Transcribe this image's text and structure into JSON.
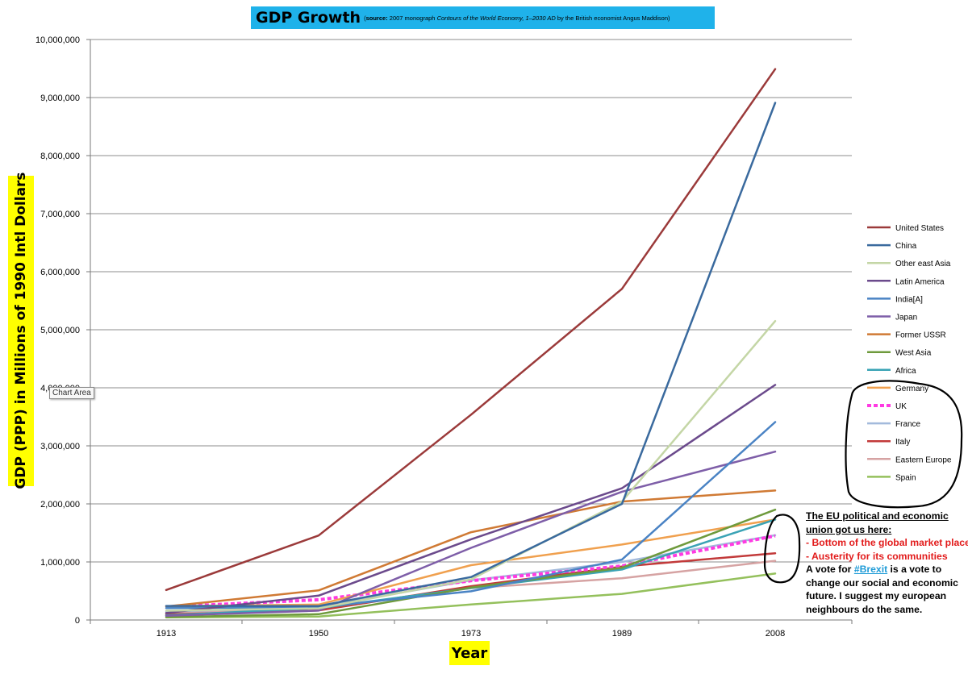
{
  "chart_data": {
    "type": "line",
    "title": "GDP Growth",
    "subtitle_label": "source:",
    "subtitle_pre": " 2007 monograph ",
    "subtitle_italic": "Contours of the World Economy, 1–2030 AD",
    "subtitle_post": " by the British economist Angus Maddison)",
    "ylabel": "GDP (PPP) in Millions of 1990 Intl Dollars",
    "xlabel": "Year",
    "categories": [
      "1913",
      "1950",
      "1973",
      "1989",
      "2008"
    ],
    "ylim": [
      0,
      10000000
    ],
    "yticks": [
      "0",
      "1,000,000",
      "2,000,000",
      "3,000,000",
      "4,000,000",
      "5,000,000",
      "6,000,000",
      "7,000,000",
      "8,000,000",
      "9,000,000",
      "10,000,000"
    ],
    "grid": true,
    "legend_position": "right",
    "series": [
      {
        "name": "United States",
        "color": "#9b3a3a",
        "values": [
          517000,
          1456000,
          3537000,
          5704000,
          9490000
        ]
      },
      {
        "name": "China",
        "color": "#3a6a9e",
        "values": [
          241000,
          240000,
          740000,
          2000000,
          8910000
        ]
      },
      {
        "name": "Other east Asia",
        "color": "#c4d6a6",
        "values": [
          160000,
          200000,
          700000,
          2040000,
          5150000
        ]
      },
      {
        "name": "Latin America",
        "color": "#6b4a8c",
        "values": [
          120000,
          420000,
          1390000,
          2270000,
          4050000
        ]
      },
      {
        "name": "India[A]",
        "color": "#4a83c4",
        "values": [
          204000,
          222000,
          494000,
          1040000,
          3410000
        ]
      },
      {
        "name": "Japan",
        "color": "#7e5ea8",
        "values": [
          72000,
          161000,
          1243000,
          2210000,
          2900000
        ]
      },
      {
        "name": "Former USSR",
        "color": "#d07a34",
        "values": [
          232000,
          510000,
          1513000,
          2040000,
          2230000
        ]
      },
      {
        "name": "West Asia",
        "color": "#6e9a3c",
        "values": [
          50000,
          100000,
          560000,
          900000,
          1900000
        ]
      },
      {
        "name": "Africa",
        "color": "#3aa3b5",
        "values": [
          79000,
          203000,
          550000,
          870000,
          1730000
        ]
      },
      {
        "name": "Germany",
        "color": "#f0a04e",
        "values": [
          237000,
          265000,
          944000,
          1300000,
          1730000
        ]
      },
      {
        "name": "UK",
        "color": "#ff3ae2",
        "values": [
          225000,
          348000,
          676000,
          930000,
          1450000
        ]
      },
      {
        "name": "France",
        "color": "#a3badc",
        "values": [
          144000,
          221000,
          684000,
          1000000,
          1460000
        ]
      },
      {
        "name": "Italy",
        "color": "#c23a3a",
        "values": [
          96000,
          164000,
          582000,
          920000,
          1150000
        ]
      },
      {
        "name": "Eastern Europe",
        "color": "#d6a3a3",
        "values": [
          121000,
          185000,
          550000,
          720000,
          1020000
        ]
      },
      {
        "name": "Spain",
        "color": "#94c05c",
        "values": [
          45000,
          60000,
          266000,
          450000,
          800000
        ]
      }
    ]
  },
  "tooltip": "Chart Area",
  "note": {
    "line1": "The EU political and economic union got us here:",
    "line2": "- Bottom of the global market place",
    "line3": "- Austerity for its communities",
    "line4_pre": "A vote for ",
    "line4_link": "#Brexit",
    "line4_post": " is a vote to change our social and economic future. I suggest my european neighbours do the same."
  }
}
